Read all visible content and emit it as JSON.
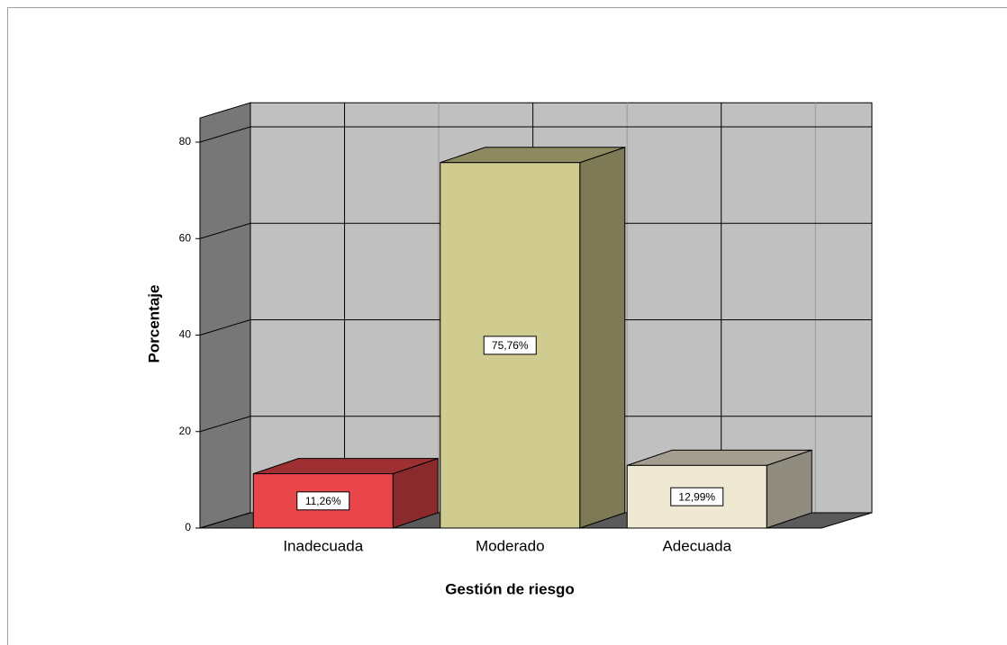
{
  "chart_data": {
    "type": "bar3d",
    "x_label": "Gestión de riesgo",
    "y_label": "Porcentaje",
    "categories": [
      "Inadecuada",
      "Moderado",
      "Adecuada"
    ],
    "values": [
      11.26,
      75.76,
      12.99
    ],
    "value_labels": [
      "11,26%",
      "75,76%",
      "12,99%"
    ],
    "colors": [
      "#e8464b",
      "#d0cb8e",
      "#efe8d2"
    ],
    "ylim": [
      0,
      85
    ],
    "yticks": [
      0,
      20,
      40,
      60,
      80
    ],
    "grid": true
  }
}
